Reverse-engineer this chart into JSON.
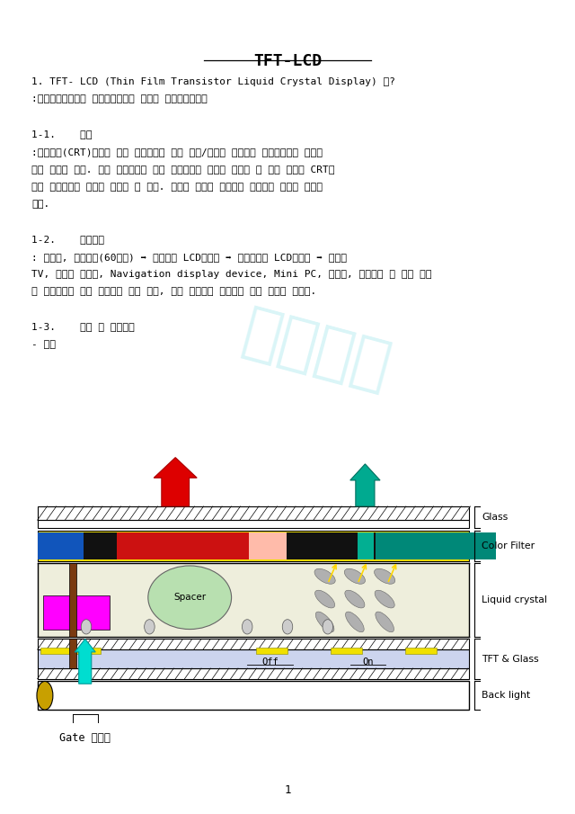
{
  "title": "TFT-LCD",
  "bg_color": "#ffffff",
  "text_color": "#000000",
  "body_lines": [
    "1. TFT- LCD (Thin Film Transistor Liquid Crystal Display) 란?",
    ":박낙트랜지스터와 액체크리스탈을 이용한 디스플레이장치",
    "",
    "1-1.    장점",
    ":브라운관(CRT)방식에 비해 소비전력이 낙고 경량/박형이 가능하며 유해전자파를 방이지",
    "않는 특징이 있다. 또한 개발환경에 따라 제작크기의 한계를 극복할 수 있기 때문에 CRT에",
    "비해 설치장소의 제약을 해결할 수 있다. 따라서 소형과 대형에서 활용하기 용이한 장점이",
    "있다.",
    "",
    "1-2.    응용분야",
    ": 계산기, 손목시계(60년대) ➡ 노트북용 LCD모니터 ➡ 데스크탑용 LCD모니터 ➡ 가정용",
    "TV, 의료용 모니터, Navigation display device, Mini PC, 군사용, 우주과학 용 등의 무한",
    "의 환경에서도 높은 신뢰성과 작은 부피, 환경 친화적인 성향으로 많이 사용될 것이다.",
    "",
    "1-3.    구조 및 동작원리",
    "- 구조"
  ],
  "page_number": "1",
  "watermark": "미리보기"
}
